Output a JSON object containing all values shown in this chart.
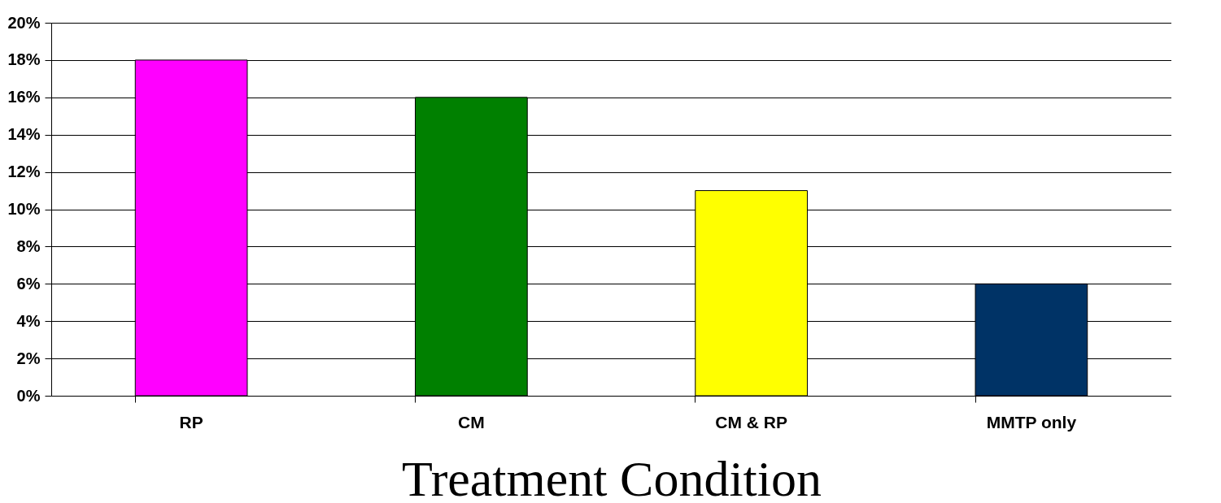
{
  "chart_data": {
    "type": "bar",
    "xlabel": "Treatment Condition",
    "categories": [
      "RP",
      "CM",
      "CM & RP",
      "MMTP only"
    ],
    "values": [
      18,
      16,
      11,
      6
    ],
    "colors": [
      "#ff00ff",
      "#008000",
      "#ffff00",
      "#003366"
    ],
    "ylim": [
      0,
      20
    ],
    "yticks": [
      {
        "value": 0,
        "label": "0%"
      },
      {
        "value": 2,
        "label": "2%"
      },
      {
        "value": 4,
        "label": "4%"
      },
      {
        "value": 6,
        "label": "6%"
      },
      {
        "value": 8,
        "label": "8%"
      },
      {
        "value": 10,
        "label": "10%"
      },
      {
        "value": 12,
        "label": "12%"
      },
      {
        "value": 14,
        "label": "14%"
      },
      {
        "value": 16,
        "label": "16%"
      },
      {
        "value": 18,
        "label": "18%"
      },
      {
        "value": 20,
        "label": "20%"
      }
    ],
    "grid": "y",
    "legend": false
  }
}
